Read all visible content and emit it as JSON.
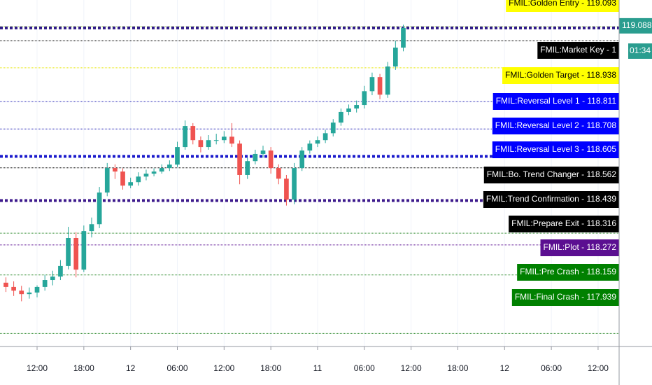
{
  "chart_data": {
    "type": "candlestick",
    "x": [
      -4,
      -3,
      -2,
      -1,
      0,
      1,
      2,
      3,
      4,
      5,
      6,
      7,
      8,
      9,
      10,
      11,
      12,
      13,
      14,
      15,
      16,
      17,
      18,
      19,
      20,
      21,
      22,
      23,
      24,
      25,
      26,
      27,
      28,
      29,
      30,
      31,
      32,
      33,
      34,
      35,
      36,
      37,
      38,
      39,
      40,
      41,
      42,
      43,
      44,
      45,
      46,
      47
    ],
    "ohlc": [
      [
        118.13,
        118.15,
        118.095,
        118.114
      ],
      [
        118.114,
        118.135,
        118.08,
        118.1
      ],
      [
        118.1,
        118.118,
        118.06,
        118.087
      ],
      [
        118.087,
        118.112,
        118.07,
        118.093
      ],
      [
        118.093,
        118.12,
        118.075,
        118.114
      ],
      [
        118.114,
        118.16,
        118.1,
        118.14
      ],
      [
        118.14,
        118.175,
        118.12,
        118.153
      ],
      [
        118.153,
        118.215,
        118.14,
        118.193
      ],
      [
        118.193,
        118.34,
        118.18,
        118.298
      ],
      [
        118.298,
        118.32,
        118.15,
        118.179
      ],
      [
        118.179,
        118.345,
        118.17,
        118.324
      ],
      [
        118.324,
        118.375,
        118.3,
        118.35
      ],
      [
        118.35,
        118.49,
        118.335,
        118.469
      ],
      [
        118.469,
        118.58,
        118.455,
        118.561
      ],
      [
        118.561,
        118.575,
        118.52,
        118.548
      ],
      [
        118.548,
        118.56,
        118.48,
        118.495
      ],
      [
        118.495,
        118.525,
        118.485,
        118.508
      ],
      [
        118.508,
        118.545,
        118.495,
        118.529
      ],
      [
        118.529,
        118.555,
        118.515,
        118.54
      ],
      [
        118.54,
        118.56,
        118.53,
        118.548
      ],
      [
        118.548,
        118.575,
        118.54,
        118.561
      ],
      [
        118.561,
        118.59,
        118.55,
        118.574
      ],
      [
        118.574,
        118.66,
        118.565,
        118.64
      ],
      [
        118.64,
        118.74,
        118.63,
        118.719
      ],
      [
        118.719,
        118.73,
        118.65,
        118.666
      ],
      [
        118.666,
        118.68,
        118.62,
        118.64
      ],
      [
        118.64,
        118.685,
        118.63,
        118.666
      ],
      [
        118.666,
        118.69,
        118.65,
        118.666
      ],
      [
        118.666,
        118.7,
        118.655,
        118.679
      ],
      [
        118.679,
        118.73,
        118.64,
        118.653
      ],
      [
        118.653,
        118.665,
        118.5,
        118.535
      ],
      [
        118.535,
        118.6,
        118.52,
        118.587
      ],
      [
        118.587,
        118.63,
        118.575,
        118.614
      ],
      [
        118.614,
        118.645,
        118.6,
        118.627
      ],
      [
        118.627,
        118.64,
        118.54,
        118.561
      ],
      [
        118.561,
        118.575,
        118.5,
        118.521
      ],
      [
        118.521,
        118.535,
        118.42,
        118.442
      ],
      [
        118.442,
        118.58,
        118.425,
        118.561
      ],
      [
        118.561,
        118.64,
        118.55,
        118.627
      ],
      [
        118.627,
        118.665,
        118.615,
        118.653
      ],
      [
        118.653,
        118.68,
        118.64,
        118.666
      ],
      [
        118.666,
        118.705,
        118.655,
        118.692
      ],
      [
        118.692,
        118.745,
        118.68,
        118.732
      ],
      [
        118.732,
        118.785,
        118.72,
        118.772
      ],
      [
        118.772,
        118.8,
        118.76,
        118.785
      ],
      [
        118.785,
        118.815,
        118.77,
        118.798
      ],
      [
        118.798,
        118.87,
        118.785,
        118.85
      ],
      [
        118.85,
        118.92,
        118.835,
        118.903
      ],
      [
        118.903,
        118.915,
        118.82,
        118.837
      ],
      [
        118.837,
        118.96,
        118.825,
        118.943
      ],
      [
        118.943,
        119.04,
        118.93,
        119.014
      ],
      [
        119.014,
        119.1,
        119.0,
        119.088
      ]
    ],
    "up_color": "#26a69a",
    "down_color": "#ef5350",
    "xlim": [
      -4.76,
      74.7
    ],
    "ylim": [
      117.89,
      119.193
    ],
    "xticks": [
      {
        "value": 0,
        "label": "12:00"
      },
      {
        "value": 6,
        "label": "18:00"
      },
      12,
      {
        "value": 18,
        "label": "06:00"
      },
      {
        "value": 24,
        "label": "12:00"
      },
      {
        "value": 30,
        "label": "18:00"
      },
      {
        "value": 36,
        "label": "11"
      },
      {
        "value": 42,
        "label": "06:00"
      },
      {
        "value": 48,
        "label": "12:00"
      },
      {
        "value": 54,
        "label": "18:00"
      },
      {
        "value": 60,
        "label": "12"
      },
      {
        "value": 66,
        "label": "06:00"
      },
      {
        "value": 72,
        "label": "12:00"
      }
    ],
    "current_price": {
      "value": 119.088,
      "label": "119.088",
      "color": "#2a9d8f",
      "line_color": "#2e1a87"
    },
    "countdown": "01:34",
    "levels": [
      {
        "label": "FMIL:Golden Entry - 119.093",
        "value": 119.093,
        "color": "#ffff00",
        "text_color": "#000000",
        "line_color": "#9acd32",
        "dashed": false
      },
      {
        "label": "FMIL:Market Key - 1",
        "value": 119.04,
        "color": "#000000",
        "text_color": "#ffffff",
        "line_color": "#000000",
        "dashed": false
      },
      {
        "label": "FMIL:Golden Target - 118.938",
        "value": 118.938,
        "color": "#ffff00",
        "text_color": "#000000",
        "line_color": "#e6e600",
        "dashed": false
      },
      {
        "label": "FMIL:Reversal Level 1 - 118.811",
        "value": 118.811,
        "color": "#0000ff",
        "text_color": "#ffffff",
        "line_color": "#2a2ab8",
        "dashed": false
      },
      {
        "label": "FMIL:Reversal Level 2 - 118.708",
        "value": 118.708,
        "color": "#0000ff",
        "text_color": "#ffffff",
        "line_color": "#2a2ab8",
        "dashed": false
      },
      {
        "label": "FMIL:Reversal Level 3 - 118.605",
        "value": 118.605,
        "color": "#0000ff",
        "text_color": "#ffffff",
        "line_color": "#1a1acc",
        "dashed": true
      },
      {
        "label": "FMIL:Bo. Trend Changer - 118.562",
        "value": 118.562,
        "color": "#000000",
        "text_color": "#ffffff",
        "line_color": "#000000",
        "dashed": false
      },
      {
        "label": "FMIL:Trend Confirmation - 118.439",
        "value": 118.439,
        "color": "#000000",
        "text_color": "#ffffff",
        "line_color": "#3d1a8c",
        "dashed": true
      },
      {
        "label": "FMIL:Prepare Exit - 118.316",
        "value": 118.316,
        "color": "#000000",
        "text_color": "#ffffff",
        "line_color": "#2e8b2e",
        "dashed": false
      },
      {
        "label": "FMIL:Plot - 118.272",
        "value": 118.272,
        "color": "#5b0f91",
        "text_color": "#ffffff",
        "line_color": "#5b0f91",
        "dashed": false
      },
      {
        "label": "FMIL:Pre Crash - 118.159",
        "value": 118.159,
        "color": "#008000",
        "text_color": "#ffffff",
        "line_color": "#2e8b2e",
        "dashed": false
      },
      {
        "label": "FMIL:Final Crash - 117.939",
        "value": 117.939,
        "color": "#008000",
        "text_color": "#ffffff",
        "line_color": "#2e8b2e",
        "dashed": false
      }
    ]
  }
}
